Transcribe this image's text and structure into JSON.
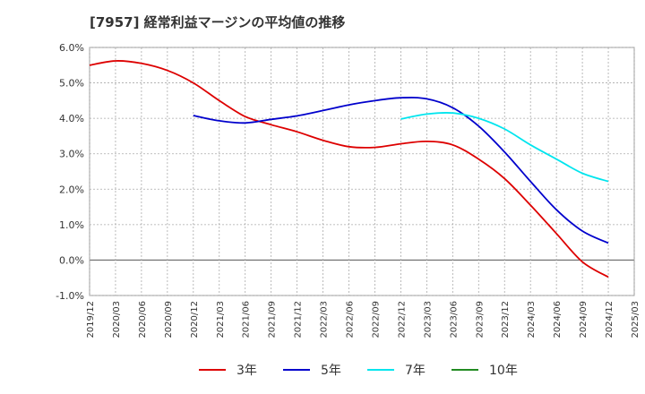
{
  "chart_data": {
    "type": "line",
    "title": "[7957]  経常利益マージンの平均値の推移",
    "xlabel": "",
    "ylabel": "",
    "ylim": [
      -1.0,
      6.0
    ],
    "y_ticks": [
      "6.0%",
      "5.0%",
      "4.0%",
      "3.0%",
      "2.0%",
      "1.0%",
      "0.0%",
      "-1.0%"
    ],
    "y_tick_values": [
      6,
      5,
      4,
      3,
      2,
      1,
      0,
      -1
    ],
    "x_ticks": [
      "2019/12",
      "2020/03",
      "2020/06",
      "2020/09",
      "2020/12",
      "2021/03",
      "2021/06",
      "2021/09",
      "2021/12",
      "2022/03",
      "2022/06",
      "2022/09",
      "2022/12",
      "2023/03",
      "2023/06",
      "2023/09",
      "2023/12",
      "2024/03",
      "2024/06",
      "2024/09",
      "2024/12",
      "2025/03"
    ],
    "grid": true,
    "legend_position": "bottom",
    "series": [
      {
        "name": "3年",
        "color": "#dd0000",
        "x": [
          "2019/12",
          "2020/03",
          "2020/06",
          "2020/09",
          "2020/12",
          "2021/03",
          "2021/06",
          "2021/09",
          "2021/12",
          "2022/03",
          "2022/06",
          "2022/09",
          "2022/12",
          "2023/03",
          "2023/06",
          "2023/09",
          "2023/12",
          "2024/03",
          "2024/06",
          "2024/09",
          "2024/12"
        ],
        "values": [
          5.5,
          5.62,
          5.55,
          5.35,
          5.0,
          4.5,
          4.05,
          3.82,
          3.62,
          3.38,
          3.2,
          3.18,
          3.28,
          3.35,
          3.25,
          2.85,
          2.3,
          1.55,
          0.75,
          -0.05,
          -0.48
        ]
      },
      {
        "name": "5年",
        "color": "#0000cc",
        "x": [
          "2020/12",
          "2021/03",
          "2021/06",
          "2021/09",
          "2021/12",
          "2022/03",
          "2022/06",
          "2022/09",
          "2022/12",
          "2023/03",
          "2023/06",
          "2023/09",
          "2023/12",
          "2024/03",
          "2024/06",
          "2024/09",
          "2024/12"
        ],
        "values": [
          4.08,
          3.93,
          3.87,
          3.97,
          4.07,
          4.22,
          4.38,
          4.5,
          4.58,
          4.55,
          4.3,
          3.78,
          3.05,
          2.22,
          1.42,
          0.82,
          0.48
        ]
      },
      {
        "name": "7年",
        "color": "#00e5ee",
        "x": [
          "2022/12",
          "2023/03",
          "2023/06",
          "2023/09",
          "2023/12",
          "2024/03",
          "2024/06",
          "2024/09",
          "2024/12"
        ],
        "values": [
          3.98,
          4.12,
          4.15,
          4.0,
          3.7,
          3.25,
          2.85,
          2.45,
          2.22
        ]
      },
      {
        "name": "10年",
        "color": "#228b22",
        "x": [],
        "values": []
      }
    ]
  }
}
